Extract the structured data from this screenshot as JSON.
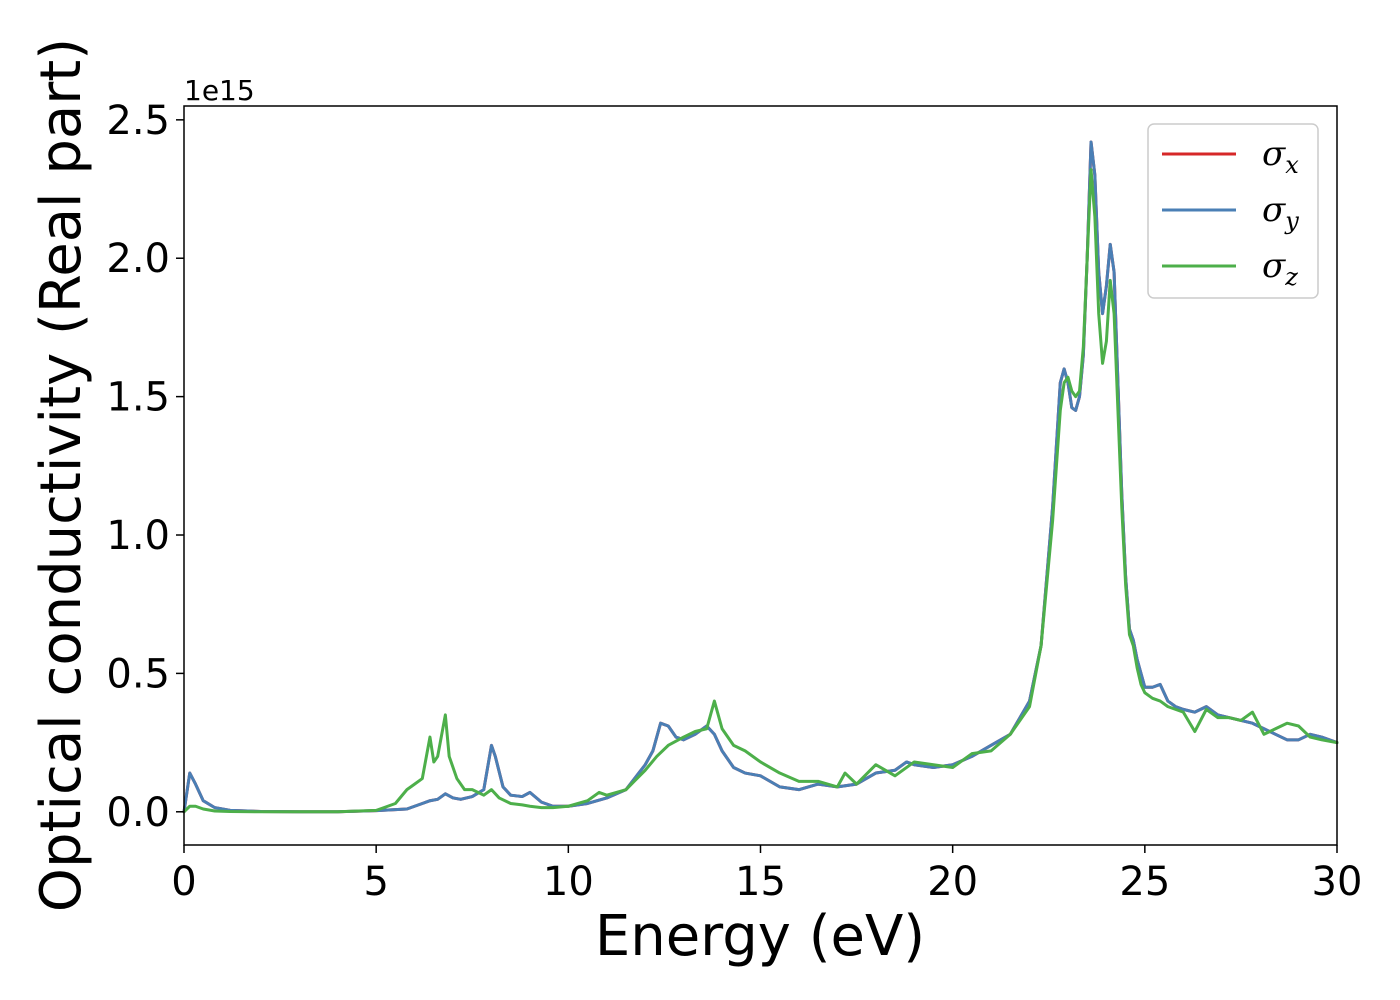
{
  "chart_data": {
    "type": "line",
    "xlabel": "Energy (eV)",
    "ylabel": "Optical conductivity (Real part)",
    "y_offset_label": "1e15",
    "xlim": [
      0,
      30
    ],
    "ylim": [
      -0.12,
      2.55
    ],
    "xticks": [
      0,
      5,
      10,
      15,
      20,
      25,
      30
    ],
    "xtick_labels": [
      "0",
      "5",
      "10",
      "15",
      "20",
      "25",
      "30"
    ],
    "yticks": [
      0.0,
      0.5,
      1.0,
      1.5,
      2.0,
      2.5
    ],
    "ytick_labels": [
      "0.0",
      "0.5",
      "1.0",
      "1.5",
      "2.0",
      "2.5"
    ],
    "grid": false,
    "legend_position": "top-right",
    "series": [
      {
        "name": "σx",
        "legend_symbol": "σ",
        "legend_subscript": "x",
        "color": "#d62728",
        "x": [
          0,
          0.15,
          0.3,
          0.5,
          0.8,
          1.2,
          2,
          3,
          4,
          5,
          5.5,
          5.8,
          6.0,
          6.2,
          6.4,
          6.6,
          6.8,
          7.0,
          7.2,
          7.5,
          7.8,
          8.0,
          8.1,
          8.3,
          8.5,
          8.8,
          9.0,
          9.3,
          9.6,
          10,
          10.5,
          11,
          11.5,
          12,
          12.2,
          12.4,
          12.6,
          12.8,
          13,
          13.3,
          13.6,
          13.8,
          14.0,
          14.3,
          14.6,
          15,
          15.5,
          16,
          16.5,
          17,
          17.5,
          18,
          18.5,
          18.8,
          19,
          19.5,
          20,
          20.5,
          21,
          21.5,
          22,
          22.3,
          22.6,
          22.8,
          22.9,
          23.0,
          23.1,
          23.2,
          23.3,
          23.4,
          23.5,
          23.6,
          23.7,
          23.8,
          23.9,
          24.0,
          24.1,
          24.2,
          24.3,
          24.4,
          24.5,
          24.6,
          24.7,
          24.8,
          24.9,
          25.0,
          25.2,
          25.4,
          25.6,
          25.8,
          26,
          26.3,
          26.6,
          26.9,
          27.2,
          27.5,
          27.8,
          28.1,
          28.4,
          28.7,
          29,
          29.3,
          29.6,
          30
        ],
        "values": [
          0.0,
          0.14,
          0.1,
          0.04,
          0.015,
          0.005,
          0.001,
          0.0,
          0.0,
          0.004,
          0.008,
          0.01,
          0.02,
          0.03,
          0.04,
          0.045,
          0.065,
          0.05,
          0.045,
          0.055,
          0.08,
          0.24,
          0.2,
          0.09,
          0.06,
          0.055,
          0.07,
          0.035,
          0.02,
          0.02,
          0.03,
          0.05,
          0.08,
          0.17,
          0.22,
          0.32,
          0.31,
          0.27,
          0.26,
          0.28,
          0.31,
          0.28,
          0.22,
          0.16,
          0.14,
          0.13,
          0.09,
          0.08,
          0.1,
          0.09,
          0.1,
          0.14,
          0.15,
          0.18,
          0.17,
          0.16,
          0.17,
          0.2,
          0.24,
          0.28,
          0.4,
          0.6,
          1.1,
          1.55,
          1.6,
          1.55,
          1.46,
          1.45,
          1.5,
          1.65,
          2.0,
          2.42,
          2.3,
          1.95,
          1.8,
          1.9,
          2.05,
          1.95,
          1.55,
          1.15,
          0.85,
          0.66,
          0.62,
          0.55,
          0.5,
          0.45,
          0.45,
          0.46,
          0.4,
          0.38,
          0.37,
          0.36,
          0.38,
          0.35,
          0.34,
          0.33,
          0.32,
          0.3,
          0.28,
          0.26,
          0.26,
          0.28,
          0.27,
          0.25
        ]
      },
      {
        "name": "σy",
        "legend_symbol": "σ",
        "legend_subscript": "y",
        "color": "#4a7fb5",
        "x": [
          0,
          0.15,
          0.3,
          0.5,
          0.8,
          1.2,
          2,
          3,
          4,
          5,
          5.5,
          5.8,
          6.0,
          6.2,
          6.4,
          6.6,
          6.8,
          7.0,
          7.2,
          7.5,
          7.8,
          8.0,
          8.1,
          8.3,
          8.5,
          8.8,
          9.0,
          9.3,
          9.6,
          10,
          10.5,
          11,
          11.5,
          12,
          12.2,
          12.4,
          12.6,
          12.8,
          13,
          13.3,
          13.6,
          13.8,
          14.0,
          14.3,
          14.6,
          15,
          15.5,
          16,
          16.5,
          17,
          17.5,
          18,
          18.5,
          18.8,
          19,
          19.5,
          20,
          20.5,
          21,
          21.5,
          22,
          22.3,
          22.6,
          22.8,
          22.9,
          23.0,
          23.1,
          23.2,
          23.3,
          23.4,
          23.5,
          23.6,
          23.7,
          23.8,
          23.9,
          24.0,
          24.1,
          24.2,
          24.3,
          24.4,
          24.5,
          24.6,
          24.7,
          24.8,
          24.9,
          25.0,
          25.2,
          25.4,
          25.6,
          25.8,
          26,
          26.3,
          26.6,
          26.9,
          27.2,
          27.5,
          27.8,
          28.1,
          28.4,
          28.7,
          29,
          29.3,
          29.6,
          30
        ],
        "values": [
          0.0,
          0.14,
          0.1,
          0.04,
          0.015,
          0.005,
          0.001,
          0.0,
          0.0,
          0.004,
          0.008,
          0.01,
          0.02,
          0.03,
          0.04,
          0.045,
          0.065,
          0.05,
          0.045,
          0.055,
          0.08,
          0.24,
          0.2,
          0.09,
          0.06,
          0.055,
          0.07,
          0.035,
          0.02,
          0.02,
          0.03,
          0.05,
          0.08,
          0.17,
          0.22,
          0.32,
          0.31,
          0.27,
          0.26,
          0.28,
          0.31,
          0.28,
          0.22,
          0.16,
          0.14,
          0.13,
          0.09,
          0.08,
          0.1,
          0.09,
          0.1,
          0.14,
          0.15,
          0.18,
          0.17,
          0.16,
          0.17,
          0.2,
          0.24,
          0.28,
          0.4,
          0.6,
          1.1,
          1.55,
          1.6,
          1.55,
          1.46,
          1.45,
          1.5,
          1.65,
          2.0,
          2.42,
          2.3,
          1.95,
          1.8,
          1.9,
          2.05,
          1.95,
          1.55,
          1.15,
          0.85,
          0.66,
          0.62,
          0.55,
          0.5,
          0.45,
          0.45,
          0.46,
          0.4,
          0.38,
          0.37,
          0.36,
          0.38,
          0.35,
          0.34,
          0.33,
          0.32,
          0.3,
          0.28,
          0.26,
          0.26,
          0.28,
          0.27,
          0.25
        ]
      },
      {
        "name": "σz",
        "legend_symbol": "σ",
        "legend_subscript": "z",
        "color": "#4daf4a",
        "x": [
          0,
          0.15,
          0.3,
          0.5,
          0.8,
          1.2,
          2,
          3,
          4,
          5,
          5.5,
          5.8,
          6.0,
          6.2,
          6.4,
          6.5,
          6.6,
          6.8,
          6.9,
          7.1,
          7.3,
          7.5,
          7.8,
          8.0,
          8.2,
          8.5,
          8.8,
          9.0,
          9.3,
          9.6,
          10,
          10.5,
          10.8,
          11,
          11.5,
          12,
          12.3,
          12.6,
          13,
          13.3,
          13.6,
          13.8,
          14.0,
          14.3,
          14.6,
          15,
          15.5,
          16,
          16.5,
          17,
          17.2,
          17.5,
          18,
          18.5,
          19,
          19.5,
          20,
          20.5,
          21,
          21.5,
          22,
          22.3,
          22.6,
          22.8,
          22.9,
          23.0,
          23.1,
          23.2,
          23.3,
          23.4,
          23.5,
          23.6,
          23.7,
          23.8,
          23.9,
          24.0,
          24.1,
          24.2,
          24.3,
          24.4,
          24.5,
          24.6,
          24.7,
          24.8,
          24.9,
          25.0,
          25.2,
          25.4,
          25.6,
          25.8,
          26,
          26.3,
          26.6,
          26.9,
          27.2,
          27.5,
          27.8,
          28.1,
          28.4,
          28.7,
          29,
          29.3,
          29.6,
          30
        ],
        "values": [
          0.0,
          0.02,
          0.02,
          0.01,
          0.003,
          0.001,
          0.0,
          0.0,
          0.0,
          0.005,
          0.03,
          0.08,
          0.1,
          0.12,
          0.27,
          0.18,
          0.2,
          0.35,
          0.2,
          0.12,
          0.08,
          0.08,
          0.06,
          0.08,
          0.05,
          0.03,
          0.025,
          0.02,
          0.015,
          0.015,
          0.02,
          0.04,
          0.07,
          0.06,
          0.08,
          0.15,
          0.2,
          0.24,
          0.27,
          0.29,
          0.3,
          0.4,
          0.3,
          0.24,
          0.22,
          0.18,
          0.14,
          0.11,
          0.11,
          0.09,
          0.14,
          0.1,
          0.17,
          0.13,
          0.18,
          0.17,
          0.16,
          0.21,
          0.22,
          0.28,
          0.38,
          0.6,
          1.05,
          1.45,
          1.55,
          1.57,
          1.52,
          1.5,
          1.52,
          1.68,
          2.0,
          2.32,
          2.15,
          1.8,
          1.62,
          1.7,
          1.92,
          1.8,
          1.45,
          1.1,
          0.82,
          0.64,
          0.6,
          0.52,
          0.46,
          0.43,
          0.41,
          0.4,
          0.38,
          0.37,
          0.36,
          0.29,
          0.37,
          0.34,
          0.34,
          0.33,
          0.36,
          0.28,
          0.3,
          0.32,
          0.31,
          0.27,
          0.26,
          0.25
        ]
      }
    ]
  }
}
